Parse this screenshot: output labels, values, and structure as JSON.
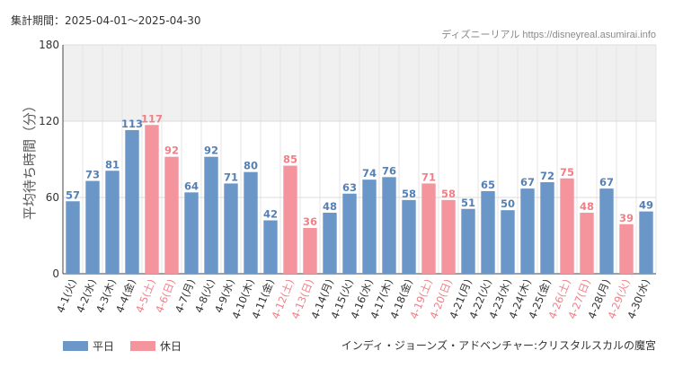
{
  "header": {
    "period": "集計期間：2025-04-01～2025-04-30",
    "source": "ディズニーリアル https://disneyreal.asumirai.info"
  },
  "caption": "インディ・ジョーンズ・アドベンチャー:クリスタルスカルの魔宮",
  "legend": {
    "weekday_label": "平日",
    "holiday_label": "休日"
  },
  "colors": {
    "weekday": "#6b96c8",
    "holiday": "#f4949c",
    "weekday_text": "#5680b4",
    "holiday_text": "#f08088",
    "band": "#f0f0f0"
  },
  "chart_data": {
    "type": "bar",
    "ylabel": "平均待ち時間（分）",
    "ylim": [
      0,
      180
    ],
    "yticks": [
      0,
      60,
      120,
      180
    ],
    "highlight_band": [
      120,
      180
    ],
    "grid": true,
    "legend_position": "bottom-left",
    "categories": [
      "4-1(火)",
      "4-2(水)",
      "4-3(木)",
      "4-4(金)",
      "4-5(土)",
      "4-6(日)",
      "4-7(月)",
      "4-8(火)",
      "4-9(水)",
      "4-10(木)",
      "4-11(金)",
      "4-12(土)",
      "4-13(日)",
      "4-14(月)",
      "4-15(火)",
      "4-16(水)",
      "4-17(木)",
      "4-18(金)",
      "4-19(土)",
      "4-20(日)",
      "4-21(月)",
      "4-22(火)",
      "4-23(水)",
      "4-24(木)",
      "4-25(金)",
      "4-26(土)",
      "4-27(日)",
      "4-28(月)",
      "4-29(火)",
      "4-30(水)"
    ],
    "values": [
      57,
      73,
      81,
      113,
      117,
      92,
      64,
      92,
      71,
      80,
      42,
      85,
      36,
      48,
      63,
      74,
      76,
      58,
      71,
      58,
      51,
      65,
      50,
      67,
      72,
      75,
      48,
      67,
      39,
      49
    ],
    "holiday": [
      false,
      false,
      false,
      false,
      true,
      true,
      false,
      false,
      false,
      false,
      false,
      true,
      true,
      false,
      false,
      false,
      false,
      false,
      true,
      true,
      false,
      false,
      false,
      false,
      false,
      true,
      true,
      false,
      true,
      false
    ]
  }
}
